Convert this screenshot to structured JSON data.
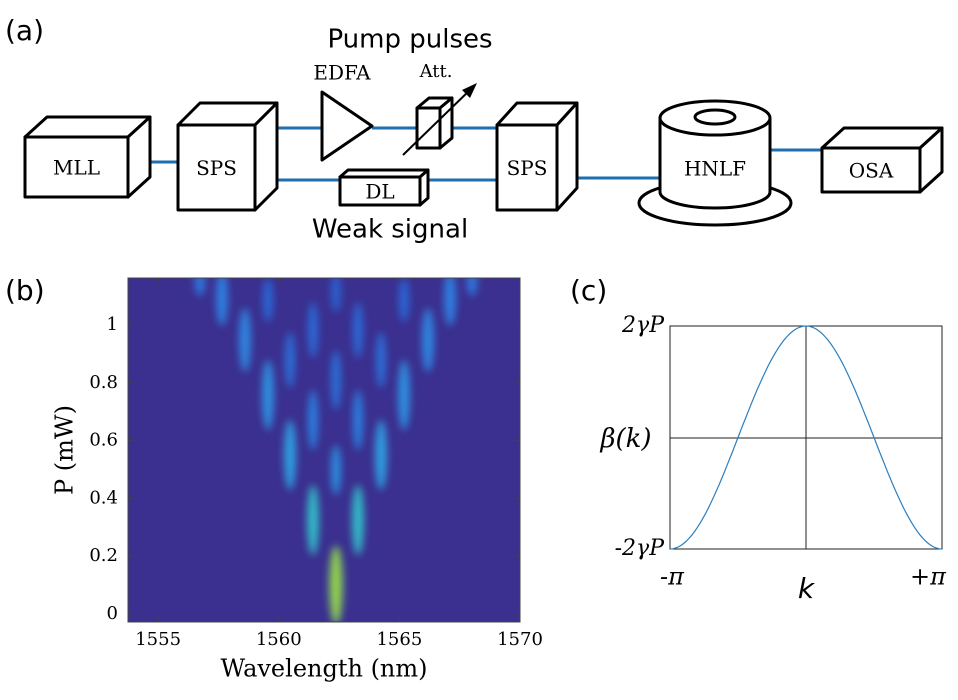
{
  "diagram": {
    "label": "(a)",
    "title": "Pump pulses",
    "bottom_label": "Weak signal",
    "components": {
      "mll": "MLL",
      "sps1": "SPS",
      "edfa": "EDFA",
      "att": "Att.",
      "dl": "DL",
      "sps2": "SPS",
      "hnlf": "HNLF",
      "osa": "OSA"
    }
  },
  "chart_data": [
    {
      "type": "heatmap",
      "label": "(b)",
      "xlabel": "Wavelength (nm)",
      "ylabel": "P (mW)",
      "xlim": [
        1553.75,
        1570
      ],
      "xticks": [
        1555,
        1560,
        1565,
        1570
      ],
      "ylim": [
        -0.028,
        1.163
      ],
      "yticks": [
        0,
        0.2,
        0.4,
        0.6,
        0.8,
        1
      ]
    },
    {
      "type": "line",
      "label": "(c)",
      "xlabel": "k",
      "ylabel": "β(k)",
      "ytick_labels": [
        "2γP",
        "-2γP"
      ],
      "xtick_labels": [
        "-π",
        "+π"
      ]
    }
  ]
}
